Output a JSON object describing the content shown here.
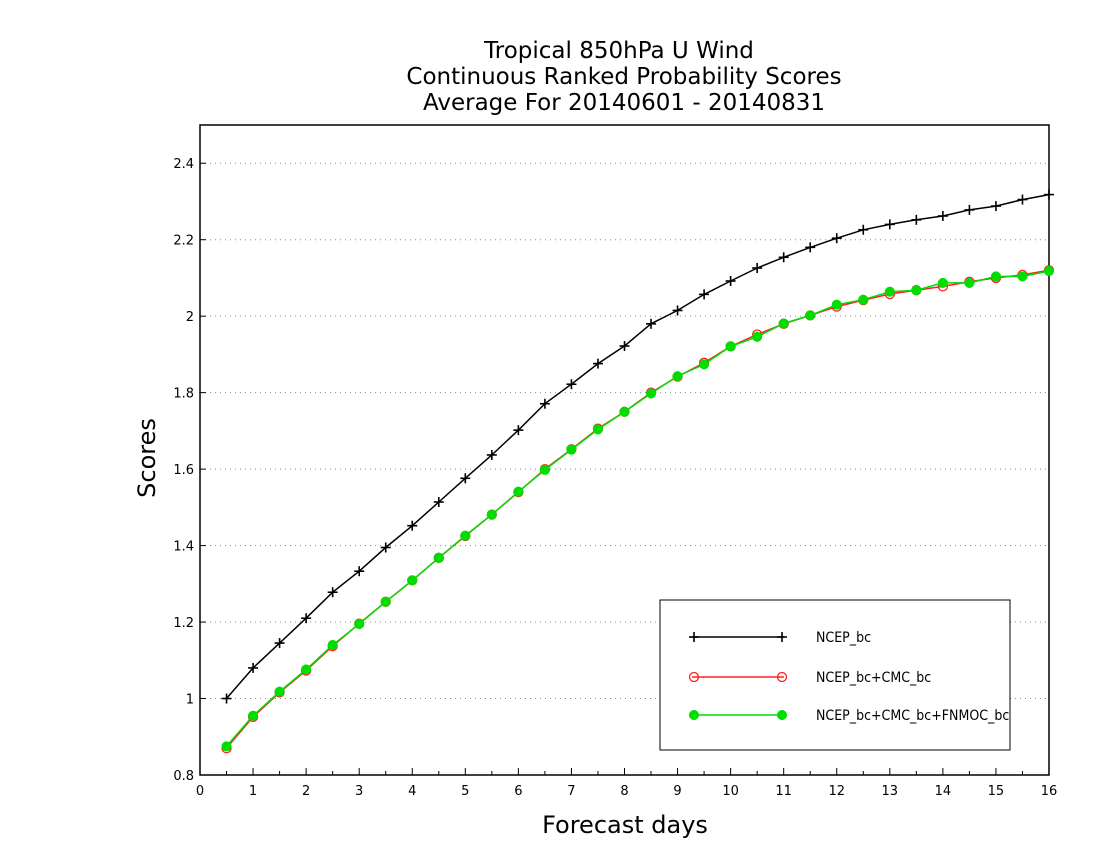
{
  "chart_data": {
    "type": "line",
    "title_lines": [
      "Tropical 850hPa U Wind",
      "Continuous Ranked Probability Scores",
      "Average For 20140601 - 20140831"
    ],
    "xlabel": "Forecast days",
    "ylabel": "Scores",
    "xlim": [
      0,
      16
    ],
    "ylim": [
      0.8,
      2.5
    ],
    "x_ticks": [
      0,
      1,
      2,
      3,
      4,
      5,
      6,
      7,
      8,
      9,
      10,
      11,
      12,
      13,
      14,
      15,
      16
    ],
    "x_tick_labels": [
      "0",
      "1",
      "2",
      "3",
      "4",
      "5",
      "6",
      "7",
      "8",
      "9",
      "10",
      "11",
      "12",
      "13",
      "14",
      "15",
      "16"
    ],
    "y_ticks": [
      0.8,
      1.0,
      1.2,
      1.4,
      1.6,
      1.8,
      2.0,
      2.2,
      2.4
    ],
    "y_tick_labels": [
      "0.8",
      "1",
      "1.2",
      "1.4",
      "1.6",
      "1.8",
      "2",
      "2.2",
      "2.4"
    ],
    "grid": "horizontal dotted",
    "legend_position": "bottom-right",
    "x": [
      0.5,
      1,
      1.5,
      2,
      2.5,
      3,
      3.5,
      4,
      4.5,
      5,
      5.5,
      6,
      6.5,
      7,
      7.5,
      8,
      8.5,
      9,
      9.5,
      10,
      10.5,
      11,
      11.5,
      12,
      12.5,
      13,
      13.5,
      14,
      14.5,
      15,
      15.5,
      16
    ],
    "series": [
      {
        "name": "NCEP_bc",
        "color": "#000000",
        "marker": "plus",
        "values": [
          1.0,
          1.08,
          1.145,
          1.21,
          1.278,
          1.333,
          1.395,
          1.452,
          1.514,
          1.576,
          1.637,
          1.702,
          1.771,
          1.822,
          1.876,
          1.922,
          1.98,
          2.015,
          2.057,
          2.092,
          2.126,
          2.154,
          2.18,
          2.204,
          2.226,
          2.24,
          2.252,
          2.262,
          2.278,
          2.288,
          2.305,
          2.318
        ]
      },
      {
        "name": "NCEP_bc+CMC_bc",
        "color": "#ff2020",
        "marker": "circle-open",
        "values": [
          0.87,
          0.952,
          1.016,
          1.073,
          1.137,
          1.196,
          1.253,
          1.309,
          1.368,
          1.425,
          1.481,
          1.54,
          1.6,
          1.652,
          1.706,
          1.75,
          1.8,
          1.842,
          1.878,
          1.921,
          1.952,
          1.98,
          2.002,
          2.025,
          2.042,
          2.058,
          2.068,
          2.078,
          2.09,
          2.1,
          2.108,
          2.12
        ]
      },
      {
        "name": "NCEP_bc+CMC_bc+FNMOC_bc",
        "color": "#00dd00",
        "marker": "circle-filled",
        "values": [
          0.875,
          0.955,
          1.018,
          1.076,
          1.14,
          1.195,
          1.253,
          1.309,
          1.368,
          1.426,
          1.481,
          1.541,
          1.598,
          1.651,
          1.704,
          1.75,
          1.798,
          1.843,
          1.874,
          1.921,
          1.946,
          1.981,
          2.002,
          2.03,
          2.043,
          2.064,
          2.068,
          2.087,
          2.087,
          2.104,
          2.104,
          2.118
        ]
      }
    ]
  }
}
